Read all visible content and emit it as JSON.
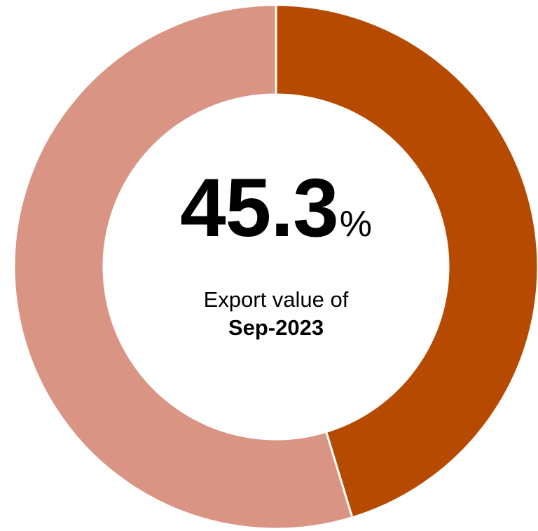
{
  "chart_data": {
    "type": "pie",
    "variant": "donut",
    "slices": [
      {
        "value": 45.3,
        "color": "#B54A00"
      },
      {
        "value": 54.7,
        "color": "#D99483"
      }
    ],
    "center": {
      "value": "45.3",
      "unit": "%",
      "caption_line1": "Export value of",
      "caption_line2": "Sep-2023"
    },
    "start_angle_deg": 0,
    "direction": "clockwise",
    "separator_color": "#FFFFFF"
  }
}
